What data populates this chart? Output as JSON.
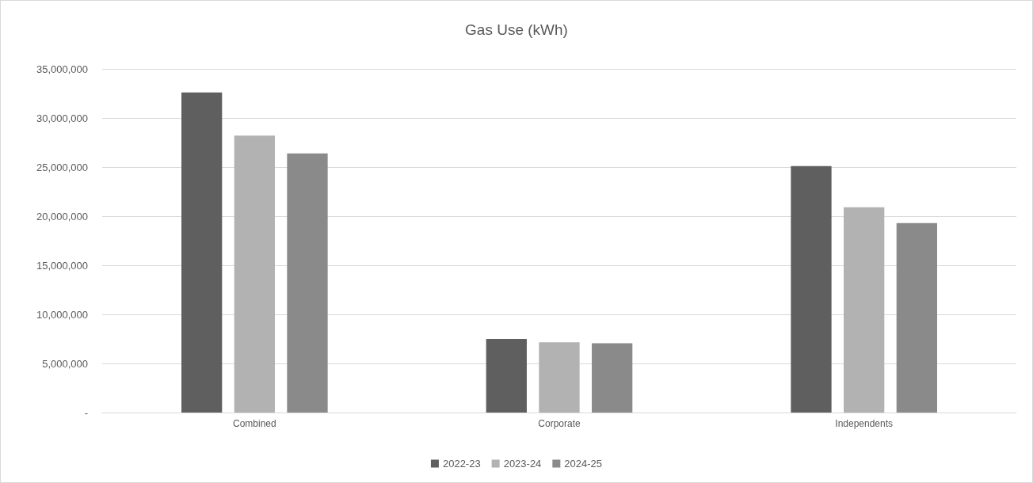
{
  "chart_data": {
    "type": "bar",
    "title": "Gas Use (kWh)",
    "categories": [
      "Combined",
      "Corporate",
      "Independents"
    ],
    "series": [
      {
        "name": "2022-23",
        "color": "#5f5f5f",
        "values": [
          32600000,
          7500000,
          25100000
        ]
      },
      {
        "name": "2023-24",
        "color": "#b2b2b2",
        "values": [
          28200000,
          7150000,
          20900000
        ]
      },
      {
        "name": "2024-25",
        "color": "#8a8a8a",
        "values": [
          26400000,
          7050000,
          19300000
        ]
      }
    ],
    "ylim": [
      0,
      35000000
    ],
    "yticks": [
      {
        "value": 0,
        "label": "-"
      },
      {
        "value": 5000000,
        "label": "5,000,000"
      },
      {
        "value": 10000000,
        "label": "10,000,000"
      },
      {
        "value": 15000000,
        "label": "15,000,000"
      },
      {
        "value": 20000000,
        "label": "20,000,000"
      },
      {
        "value": 25000000,
        "label": "25,000,000"
      },
      {
        "value": 30000000,
        "label": "30,000,000"
      },
      {
        "value": 35000000,
        "label": "35,000,000"
      }
    ],
    "grid": "y",
    "legend": "bottom"
  }
}
